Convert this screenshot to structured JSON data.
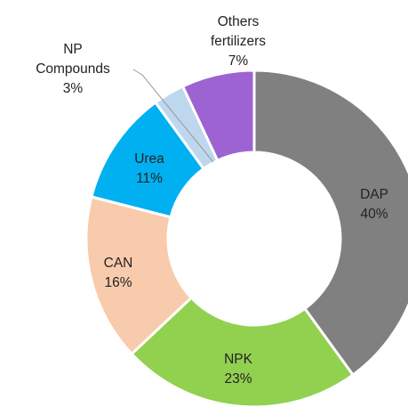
{
  "chart_data": {
    "type": "donut",
    "categories": [
      "DAP",
      "NPK",
      "CAN",
      "Urea",
      "NP Compounds",
      "Others fertilizers"
    ],
    "values": [
      40,
      23,
      16,
      11,
      3,
      7
    ],
    "value_labels": [
      "40%",
      "23%",
      "16%",
      "11%",
      "3%",
      "7%"
    ],
    "colors": [
      "#808080",
      "#92d050",
      "#f8cbad",
      "#00b0f0",
      "#bdd7ee",
      "#9e63d2"
    ]
  }
}
